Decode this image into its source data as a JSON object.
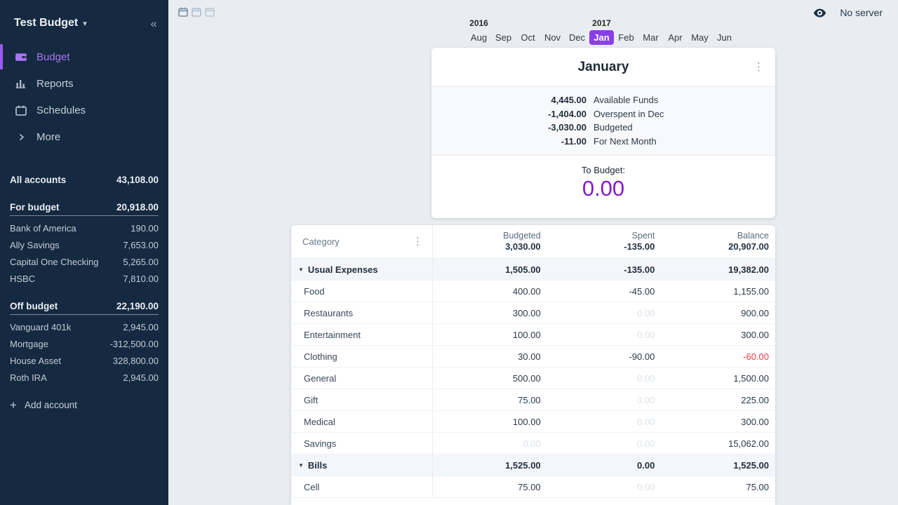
{
  "colors": {
    "accent": "#8A3FE8",
    "to_budget": "#8719CE",
    "sidebar_active": "#A974F5",
    "sidebar_active_bar": "#9B5BEF",
    "negative": "#F03B46"
  },
  "sidebar": {
    "title": "Test Budget",
    "nav": [
      {
        "label": "Budget",
        "icon": "wallet",
        "active": true
      },
      {
        "label": "Reports",
        "icon": "bar-chart",
        "active": false
      },
      {
        "label": "Schedules",
        "icon": "calendar",
        "active": false
      },
      {
        "label": "More",
        "icon": "chevron-right",
        "active": false
      }
    ],
    "accounts": {
      "all": {
        "name": "All accounts",
        "value": "43,108.00"
      },
      "groups": [
        {
          "name": "For budget",
          "value": "20,918.00",
          "items": [
            {
              "name": "Bank of America",
              "value": "190.00"
            },
            {
              "name": "Ally Savings",
              "value": "7,653.00"
            },
            {
              "name": "Capital One Checking",
              "value": "5,265.00"
            },
            {
              "name": "HSBC",
              "value": "7,810.00"
            }
          ]
        },
        {
          "name": "Off budget",
          "value": "22,190.00",
          "items": [
            {
              "name": "Vanguard 401k",
              "value": "2,945.00"
            },
            {
              "name": "Mortgage",
              "value": "-312,500.00"
            },
            {
              "name": "House Asset",
              "value": "328,800.00"
            },
            {
              "name": "Roth IRA",
              "value": "2,945.00"
            }
          ]
        }
      ],
      "add_label": "Add account"
    }
  },
  "topbar": {
    "server_label": "No server",
    "month_view_buttons": [
      {
        "name": "one-month",
        "active": true
      },
      {
        "name": "two-months",
        "active": false
      },
      {
        "name": "three-months",
        "active": false
      }
    ]
  },
  "month_nav": {
    "months": [
      "Aug",
      "Sep",
      "Oct",
      "Nov",
      "Dec",
      "Jan",
      "Feb",
      "Mar",
      "Apr",
      "May",
      "Jun"
    ],
    "selected_index": 5,
    "years": [
      {
        "label": "2016",
        "month_index": 0
      },
      {
        "label": "2017",
        "month_index": 5
      }
    ]
  },
  "month_card": {
    "title": "January",
    "summary": [
      {
        "value": "4,445.00",
        "label": "Available Funds"
      },
      {
        "value": "-1,404.00",
        "label": "Overspent in Dec"
      },
      {
        "value": "-3,030.00",
        "label": "Budgeted"
      },
      {
        "value": "-11.00",
        "label": "For Next Month"
      }
    ],
    "to_budget_label": "To Budget:",
    "to_budget_value": "0.00"
  },
  "table": {
    "category_header": "Category",
    "columns": [
      {
        "label": "Budgeted",
        "total": "3,030.00"
      },
      {
        "label": "Spent",
        "total": "-135.00"
      },
      {
        "label": "Balance",
        "total": "20,907.00"
      }
    ],
    "rows": [
      {
        "type": "group",
        "name": "Usual Expenses",
        "budgeted": "1,505.00",
        "spent": "-135.00",
        "balance": "19,382.00"
      },
      {
        "type": "category",
        "name": "Food",
        "budgeted": "400.00",
        "spent": "-45.00",
        "balance": "1,155.00"
      },
      {
        "type": "category",
        "name": "Restaurants",
        "budgeted": "300.00",
        "spent": "0.00",
        "balance": "900.00",
        "spent_muted": true
      },
      {
        "type": "category",
        "name": "Entertainment",
        "budgeted": "100.00",
        "spent": "0.00",
        "balance": "300.00",
        "spent_muted": true
      },
      {
        "type": "category",
        "name": "Clothing",
        "budgeted": "30.00",
        "spent": "-90.00",
        "balance": "-60.00",
        "balance_negative": true
      },
      {
        "type": "category",
        "name": "General",
        "budgeted": "500.00",
        "spent": "0.00",
        "balance": "1,500.00",
        "spent_muted": true
      },
      {
        "type": "category",
        "name": "Gift",
        "budgeted": "75.00",
        "spent": "0.00",
        "balance": "225.00",
        "spent_muted": true
      },
      {
        "type": "category",
        "name": "Medical",
        "budgeted": "100.00",
        "spent": "0.00",
        "balance": "300.00",
        "spent_muted": true
      },
      {
        "type": "category",
        "name": "Savings",
        "budgeted": "0.00",
        "spent": "0.00",
        "balance": "15,062.00",
        "budgeted_muted": true,
        "spent_muted": true
      },
      {
        "type": "group",
        "name": "Bills",
        "budgeted": "1,525.00",
        "spent": "0.00",
        "balance": "1,525.00"
      },
      {
        "type": "category",
        "name": "Cell",
        "budgeted": "75.00",
        "spent": "0.00",
        "balance": "75.00",
        "spent_muted": true
      }
    ]
  }
}
